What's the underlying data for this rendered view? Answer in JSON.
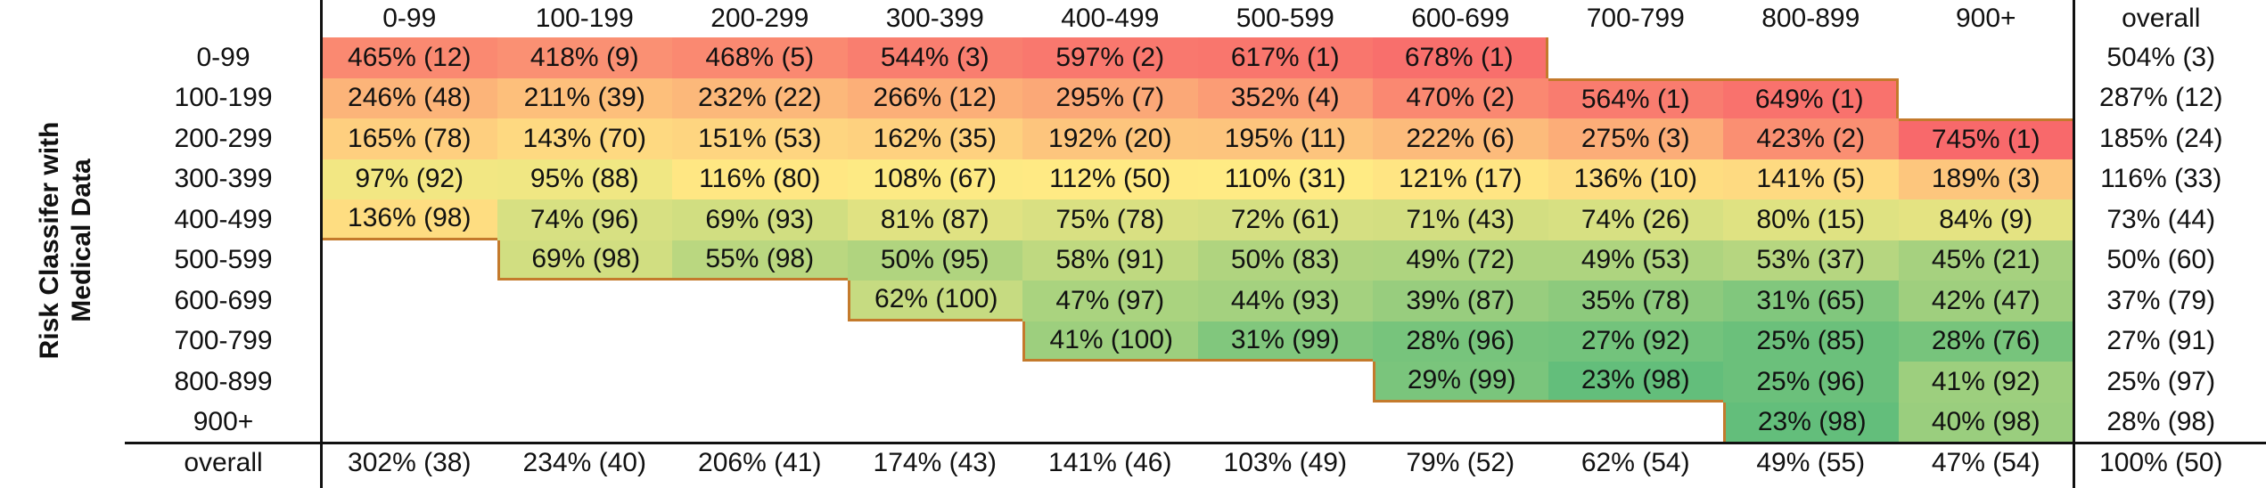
{
  "y_axis_title": [
    "Risk Classifer with",
    "Medical Data"
  ],
  "table": {
    "columns": [
      "0-99",
      "100-199",
      "200-299",
      "300-399",
      "400-499",
      "500-599",
      "600-699",
      "700-799",
      "800-899",
      "900+",
      "overall"
    ],
    "rows": [
      {
        "label": "0-99",
        "cells": [
          "465% (12)",
          "418% (9)",
          "468% (5)",
          "544% (3)",
          "597% (2)",
          "617% (1)",
          "678% (1)",
          null,
          null,
          null,
          "504% (3)"
        ]
      },
      {
        "label": "100-199",
        "cells": [
          "246% (48)",
          "211% (39)",
          "232% (22)",
          "266% (12)",
          "295% (7)",
          "352% (4)",
          "470% (2)",
          "564% (1)",
          "649% (1)",
          null,
          "287% (12)"
        ]
      },
      {
        "label": "200-299",
        "cells": [
          "165% (78)",
          "143% (70)",
          "151% (53)",
          "162% (35)",
          "192% (20)",
          "195% (11)",
          "222% (6)",
          "275% (3)",
          "423% (2)",
          "745% (1)",
          "185% (24)"
        ]
      },
      {
        "label": "300-399",
        "cells": [
          "97% (92)",
          "95% (88)",
          "116% (80)",
          "108% (67)",
          "112% (50)",
          "110% (31)",
          "121% (17)",
          "136% (10)",
          "141% (5)",
          "189% (3)",
          "116% (33)"
        ]
      },
      {
        "label": "400-499",
        "cells": [
          "136% (98)",
          "74% (96)",
          "69% (93)",
          "81% (87)",
          "75% (78)",
          "72% (61)",
          "71% (43)",
          "74% (26)",
          "80% (15)",
          "84% (9)",
          "73% (44)"
        ]
      },
      {
        "label": "500-599",
        "cells": [
          null,
          "69% (98)",
          "55% (98)",
          "50% (95)",
          "58% (91)",
          "50% (83)",
          "49% (72)",
          "49% (53)",
          "53% (37)",
          "45% (21)",
          "50% (60)"
        ]
      },
      {
        "label": "600-699",
        "cells": [
          null,
          null,
          null,
          "62% (100)",
          "47% (97)",
          "44% (93)",
          "39% (87)",
          "35% (78)",
          "31% (65)",
          "42% (47)",
          "37% (79)"
        ]
      },
      {
        "label": "700-799",
        "cells": [
          null,
          null,
          null,
          null,
          "41% (100)",
          "31% (99)",
          "28% (96)",
          "27% (92)",
          "25% (85)",
          "28% (76)",
          "27% (91)"
        ]
      },
      {
        "label": "800-899",
        "cells": [
          null,
          null,
          null,
          null,
          null,
          null,
          "29% (99)",
          "23% (98)",
          "25% (96)",
          "41% (92)",
          "25% (97)"
        ]
      },
      {
        "label": "900+",
        "cells": [
          null,
          null,
          null,
          null,
          null,
          null,
          null,
          null,
          "23% (98)",
          "40% (98)",
          "28% (98)"
        ]
      },
      {
        "label": "overall",
        "cells": [
          "302% (38)",
          "234% (40)",
          "206% (41)",
          "174% (43)",
          "141% (46)",
          "103% (49)",
          "79% (52)",
          "62% (54)",
          "49% (55)",
          "47% (54)",
          "100% (50)"
        ]
      }
    ]
  }
}
